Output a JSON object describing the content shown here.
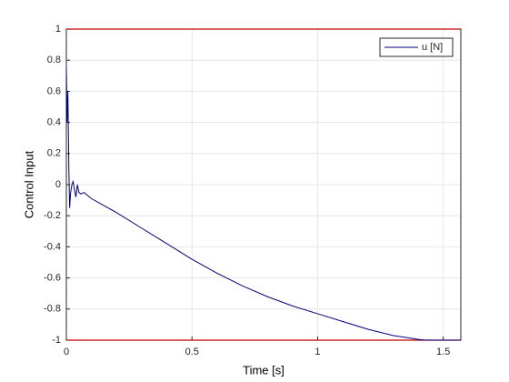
{
  "chart_data": {
    "type": "line",
    "xlabel": "Time [s]",
    "ylabel": "Control Input",
    "x": [
      0,
      0.003,
      0.006,
      0.01,
      0.013,
      0.017,
      0.022,
      0.027,
      0.032,
      0.038,
      0.044,
      0.05,
      0.058,
      0.07,
      0.085,
      0.1,
      0.2,
      0.3,
      0.4,
      0.5,
      0.6,
      0.7,
      0.8,
      0.9,
      1.0,
      1.1,
      1.2,
      1.3,
      1.4,
      1.43,
      1.57
    ],
    "series": [
      {
        "name": "u [N]",
        "color": "#000080",
        "values": [
          0.75,
          0.4,
          0.6,
          0.1,
          -0.15,
          -0.05,
          0.0,
          0.02,
          -0.03,
          -0.08,
          0.0,
          -0.05,
          -0.06,
          -0.05,
          -0.07,
          -0.09,
          -0.18,
          -0.28,
          -0.38,
          -0.48,
          -0.57,
          -0.65,
          -0.72,
          -0.78,
          -0.83,
          -0.88,
          -0.93,
          -0.97,
          -0.995,
          -1,
          -1
        ]
      }
    ],
    "hlines": {
      "color": "#c00000",
      "values": [
        1,
        -1
      ]
    },
    "xlim": [
      0,
      1.57
    ],
    "ylim": [
      -1,
      1
    ],
    "xticks": [
      0,
      0.5,
      1,
      1.5
    ],
    "yticks": [
      -1,
      -0.8,
      -0.6,
      -0.4,
      -0.2,
      0,
      0.2,
      0.4,
      0.6,
      0.8,
      1
    ],
    "grid": true,
    "legend": "upper-right"
  }
}
